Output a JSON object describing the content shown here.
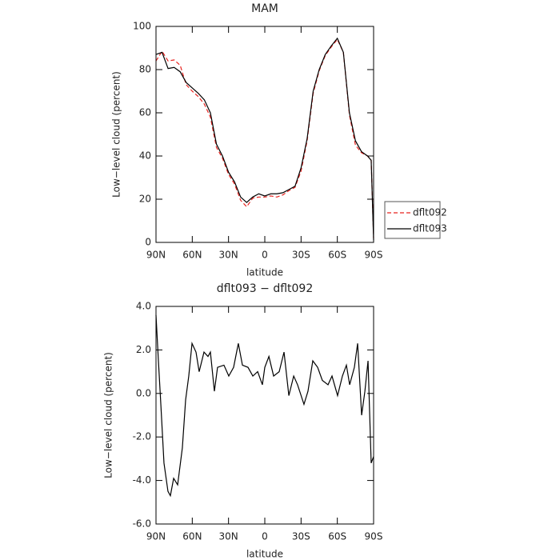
{
  "chart_data": [
    {
      "type": "line",
      "title": "MAM",
      "x_label": "latitude",
      "y_label": "Low−level cloud (percent)",
      "x": [
        90,
        85,
        80,
        75,
        70,
        65,
        60,
        55,
        50,
        45,
        40,
        35,
        30,
        25,
        20,
        15,
        10,
        5,
        0,
        -5,
        -10,
        -15,
        -20,
        -25,
        -30,
        -35,
        -40,
        -45,
        -50,
        -55,
        -60,
        -65,
        -70,
        -75,
        -80,
        -85,
        -88,
        -90
      ],
      "series": [
        {
          "name": "dflt092",
          "color": "#e8231f",
          "line_style": "dashed",
          "values": [
            84,
            88.5,
            84,
            84.5,
            82,
            73,
            70,
            67.5,
            64,
            58,
            44,
            39,
            31.5,
            27,
            19.5,
            16.5,
            20.5,
            21,
            21,
            21.5,
            21,
            22,
            24,
            25.5,
            33,
            47,
            69,
            79.5,
            86.5,
            90.5,
            94,
            88,
            59,
            45,
            41.5,
            40,
            38,
            2
          ]
        },
        {
          "name": "dflt093",
          "color": "#000000",
          "line_style": "solid",
          "values": [
            87,
            88,
            80.5,
            81,
            79,
            74,
            71.5,
            69,
            66,
            60,
            45.5,
            40,
            32.5,
            28,
            21,
            18.5,
            21,
            22.5,
            21.5,
            22.5,
            22.5,
            23,
            24.5,
            26,
            34.5,
            48,
            70,
            80,
            87,
            91,
            94.5,
            88,
            60,
            47,
            42,
            40,
            38,
            1
          ]
        }
      ],
      "xlim": [
        90,
        -90
      ],
      "ylim": [
        0,
        100
      ],
      "xticks": [
        {
          "value": 90,
          "label": "90N"
        },
        {
          "value": 60,
          "label": "60N"
        },
        {
          "value": 30,
          "label": "30N"
        },
        0,
        {
          "value": -30,
          "label": "30S"
        },
        {
          "value": -60,
          "label": "60S"
        },
        {
          "value": -90,
          "label": "90S"
        }
      ],
      "yticks": [
        0,
        20,
        40,
        60,
        80,
        100
      ],
      "legend": "right"
    },
    {
      "type": "line",
      "title": "dflt093 − dflt092",
      "x_label": "latitude",
      "y_label": "Low−level cloud (percent)",
      "x": [
        90,
        88,
        86,
        83.4,
        80.1,
        78.1,
        75.4,
        72.1,
        68.2,
        65.5,
        62.9,
        60.2,
        56.9,
        54.3,
        50.3,
        47,
        45,
        41.7,
        39.1,
        33.8,
        29.8,
        25.8,
        21.9,
        18.5,
        13.9,
        9.9,
        5.9,
        2,
        0,
        -3.4,
        -7.3,
        -11.9,
        -15.9,
        -19.9,
        -23.9,
        -27.1,
        -32.4,
        -35.7,
        -39.7,
        -43.7,
        -47.6,
        -52.3,
        -55.6,
        -60.2,
        -64.2,
        -67.5,
        -70.2,
        -74.1,
        -76.8,
        -80.1,
        -82.8,
        -85.4,
        -88,
        -90
      ],
      "series": [
        {
          "color": "#000000",
          "line_style": "solid",
          "values": [
            3.6,
            1.5,
            -0.5,
            -3.2,
            -4.5,
            -4.7,
            -3.9,
            -4.2,
            -2.5,
            -0.3,
            0.8,
            2.3,
            1.9,
            1.0,
            1.9,
            1.7,
            1.9,
            0.1,
            1.2,
            1.3,
            0.8,
            1.2,
            2.3,
            1.3,
            1.2,
            0.8,
            1.0,
            0.4,
            1.2,
            1.7,
            0.8,
            1.0,
            1.9,
            -0.1,
            0.8,
            0.4,
            -0.5,
            0.1,
            1.5,
            1.2,
            0.6,
            0.4,
            0.8,
            -0.1,
            0.8,
            1.3,
            0.4,
            1.2,
            2.3,
            -1.0,
            0.1,
            1.5,
            -3.2,
            -2.9
          ]
        }
      ],
      "xlim": [
        90,
        -90
      ],
      "ylim": [
        -6,
        4
      ],
      "xticks": [
        {
          "value": 90,
          "label": "90N"
        },
        {
          "value": 60,
          "label": "60N"
        },
        {
          "value": 30,
          "label": "30N"
        },
        0,
        {
          "value": -30,
          "label": "30S"
        },
        {
          "value": -60,
          "label": "60S"
        },
        {
          "value": -90,
          "label": "90S"
        }
      ],
      "yticks": [
        {
          "value": 4,
          "label": "4.0"
        },
        {
          "value": 2,
          "label": "2.0"
        },
        {
          "value": 0,
          "label": "0.0"
        },
        {
          "value": -2,
          "label": "-2.0"
        },
        {
          "value": -4,
          "label": "-4.0"
        },
        {
          "value": -6,
          "label": "-6.0"
        }
      ]
    }
  ]
}
